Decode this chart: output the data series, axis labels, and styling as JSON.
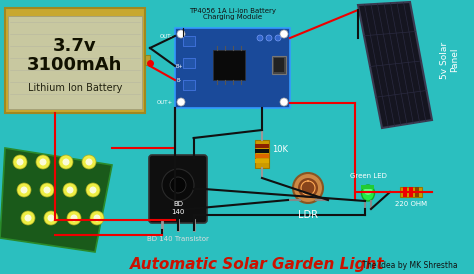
{
  "bg_color": "#2BBFBF",
  "title_main": "Automatic Solar Garden Light",
  "title_sub": " The Idea by MK Shrestha",
  "title_color_main": "#CC1100",
  "title_color_sub": "#111111",
  "title_fontsize_main": 11,
  "title_fontsize_sub": 5.5,
  "battery_label1": "3.7v",
  "battery_label2": "3100mAh",
  "battery_label3": "Lithium Ion Battery",
  "battery_bg": "#D8D8A0",
  "battery_border": "#B8A840",
  "battery_stripe": "#C8C878",
  "module_label": "TP4056 1A Li-ion Battery\nCharging Module",
  "module_color": "#1A4A9A",
  "module_border": "#3399FF",
  "solar_label": "5v Solar\nPanel",
  "solar_color": "#1A1A2A",
  "solar_border": "#444455",
  "led_array_color": "#1A5A1A",
  "led_array_border": "#2A8A2A",
  "transistor_body": "#151515",
  "transistor_label": "BD 140 Transistor",
  "resistor_label": "10K",
  "ldr_label": "LDR",
  "green_led_label": "Green LED",
  "ohm_label": "220 OHM",
  "wire_red": "#EE0000",
  "wire_black": "#111111"
}
